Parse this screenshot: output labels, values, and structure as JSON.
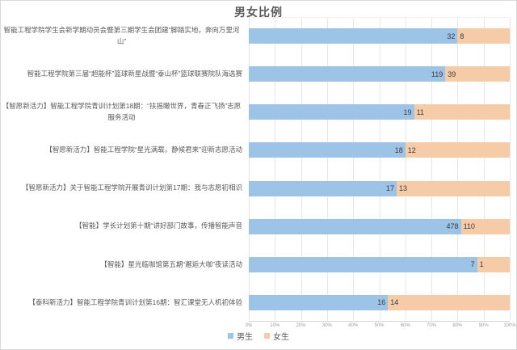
{
  "title": "男女比例",
  "colors": {
    "male_bar": "#9DC3E6",
    "female_bar": "#F5CBA8",
    "gridline": "#E7E7E7",
    "axis_line": "#D9D9D9",
    "title_text": "#595959",
    "category_text": "#595959",
    "value_text": "#3B3B3B",
    "tick_text": "#9E9E9E"
  },
  "legend": {
    "items": [
      {
        "label": "男生",
        "color": "#9DC3E6"
      },
      {
        "label": "女生",
        "color": "#F5CBA8"
      }
    ]
  },
  "x_axis": {
    "tick_labels": [
      "0%",
      "10%",
      "20%",
      "30%",
      "40%",
      "50%",
      "60%",
      "70%",
      "80%",
      "90%",
      "100%"
    ]
  },
  "chart_data": {
    "type": "bar",
    "subtype": "stacked-100-horizontal",
    "title": "男女比例",
    "categories": [
      "智能工程学院学生会新学期动员会暨第三期学生会团建“脚踏实地，奔向万里河山”",
      "智能工程学院第三届“超能杯”篮球新星战暨“泰山杯”篮球联赛院队海选赛",
      "【智愿新活力】智能工程学院青训计划第18期：“扶摇瞰世界，青春正飞扬”志愿服务活动",
      "【智愿新活力】智能工程学院“星光满载，静候君来”迎新志愿活动",
      "【智愿新活力】关于智能工程学院开展青训计划第17期：我与志愿初相识",
      "【智能】学长计划第十期“讲好部门故事，传播智能声音",
      "【智能】星光临咖馆第五期“邂逅大咖”夜读活动",
      "【泰科新活力】智能工程学院青训计划第16期：智汇课堂无人机初体验"
    ],
    "series": [
      {
        "name": "男生",
        "values": [
          32,
          119,
          19,
          18,
          17,
          478,
          7,
          16
        ]
      },
      {
        "name": "女生",
        "values": [
          8,
          39,
          11,
          12,
          13,
          110,
          1,
          14
        ]
      }
    ],
    "x_ticks": [
      "0%",
      "10%",
      "20%",
      "30%",
      "40%",
      "50%",
      "60%",
      "70%",
      "80%",
      "90%",
      "100%"
    ],
    "xlim_percent": [
      0,
      100
    ],
    "grid": true,
    "legend_position": "bottom",
    "value_labels": true
  }
}
